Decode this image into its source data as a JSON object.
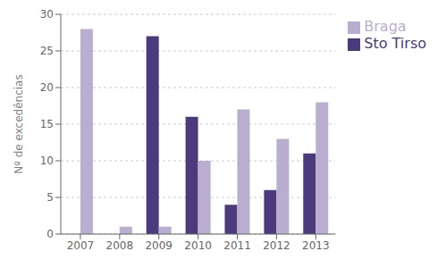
{
  "chart_data": {
    "type": "bar",
    "categories": [
      "2007",
      "2008",
      "2009",
      "2010",
      "2011",
      "2012",
      "2013"
    ],
    "series": [
      {
        "name": "Sto Tirso",
        "color": "#4B3A7C",
        "values": [
          0,
          0,
          27,
          16,
          4,
          6,
          11
        ]
      },
      {
        "name": "Braga",
        "color": "#B9AECF",
        "values": [
          28,
          1,
          1,
          10,
          17,
          13,
          18
        ]
      }
    ],
    "ylabel": "Nº de excedências",
    "ylim": [
      0,
      30
    ],
    "yticks": [
      0,
      5,
      10,
      15,
      20,
      25,
      30
    ],
    "grid": true,
    "legend": "right"
  }
}
